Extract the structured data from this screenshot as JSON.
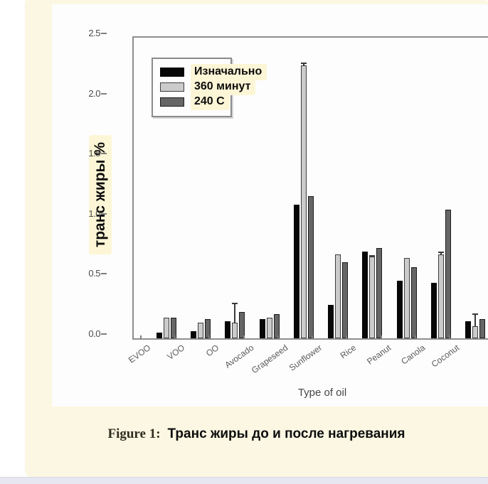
{
  "page": {
    "card_color": "#fbf7e2",
    "figure_bg": "#fdfdfe",
    "highlight_color": "#fcf6d6",
    "bottom_strip_color": "#e6e7f1"
  },
  "caption": {
    "prefix": "Figure 1:",
    "text": "Транс жиры до и после нагревания"
  },
  "chart_data": {
    "type": "bar",
    "title": "",
    "xlabel": "Type of oil",
    "ylabel": "транс жиры %",
    "ylim": [
      0,
      2.5
    ],
    "yticks": [
      "0.0",
      "0.5",
      "1.0",
      "1.5",
      "2.0",
      "2.5"
    ],
    "grid": false,
    "legend_position": "upper-left",
    "categories": [
      "EVOO",
      "VOO",
      "OO",
      "Avocado",
      "Grapeseed",
      "Sunflower",
      "Rice",
      "Peanut",
      "Canola",
      "Coconut"
    ],
    "series": [
      {
        "name": "Изначально",
        "color": "#070707",
        "values": [
          0.05,
          0.06,
          0.14,
          0.16,
          1.11,
          0.28,
          0.72,
          0.48,
          0.46,
          0.14
        ]
      },
      {
        "name": "360 минут",
        "color": "#cbcbcb",
        "values": [
          0.17,
          0.13,
          0.13,
          0.17,
          2.27,
          0.7,
          0.68,
          0.67,
          0.7,
          0.1
        ],
        "err_top": [
          null,
          null,
          0.3,
          null,
          2.3,
          null,
          0.7,
          null,
          0.73,
          0.21
        ]
      },
      {
        "name": "240 C",
        "color": "#666666",
        "values": [
          0.17,
          0.16,
          0.22,
          0.2,
          1.18,
          0.63,
          0.75,
          0.59,
          1.07,
          0.16
        ]
      }
    ]
  }
}
